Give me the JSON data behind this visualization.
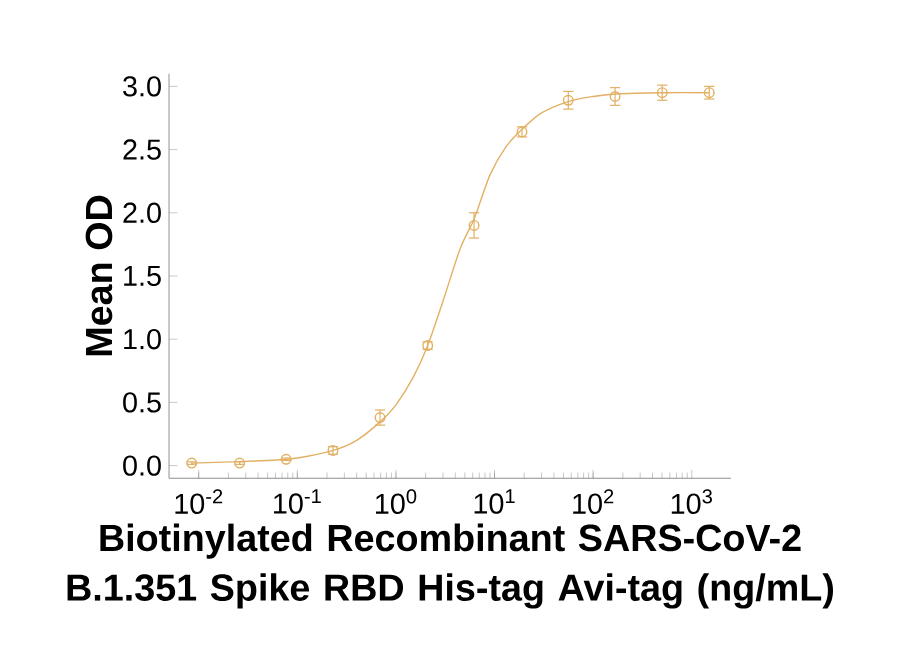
{
  "chart_data": {
    "type": "scatter",
    "xlabel": "Biotinylated Recombinant SARS-CoV-2 B.1.351 Spike RBD His-tag Avi-tag (ng/mL)",
    "ylabel": "Mean OD",
    "log": "x",
    "marker": "circle",
    "xlim": [
      0.005,
      2500
    ],
    "ylim": [
      -0.1,
      3.1
    ],
    "xticks": [
      {
        "value": 0.01,
        "label": "10$^{-2}$"
      },
      {
        "value": 0.1,
        "label": "10$^{-1}$"
      },
      {
        "value": 1,
        "label": "10$^{0}$"
      },
      {
        "value": 10,
        "label": "10$^{1}$"
      },
      {
        "value": 100,
        "label": "10$^{2}$"
      },
      {
        "value": 1000,
        "label": "10$^{3}$"
      }
    ],
    "yticks": [
      {
        "value": 0,
        "label": "0.0"
      },
      0.5,
      {
        "value": 1,
        "label": "1.0"
      },
      1.5,
      {
        "value": 2,
        "label": "2.0"
      },
      2.5,
      {
        "value": 3,
        "label": "3.0"
      }
    ],
    "series": [
      {
        "color": "#e2b063",
        "x": [
          0.0085,
          0.026,
          0.077,
          0.23,
          0.69,
          2.1,
          6.2,
          19,
          56,
          167,
          502,
          1506
        ],
        "values": [
          0.02,
          0.02,
          0.05,
          0.12,
          0.38,
          0.95,
          1.9,
          2.64,
          2.89,
          2.92,
          2.95,
          2.95
        ],
        "errors": [
          0.01,
          0.01,
          0.01,
          0.03,
          0.06,
          0.03,
          0.1,
          0.04,
          0.07,
          0.07,
          0.06,
          0.05
        ]
      },
      {
        "type": "line",
        "marker": "none",
        "color": "#e2b063",
        "x": [
          0.0085,
          0.05,
          0.1,
          0.23,
          0.4,
          0.7,
          1,
          1.5,
          2.1,
          3,
          4.5,
          6.2,
          9,
          13,
          19,
          30,
          56,
          100,
          167,
          500,
          1506
        ],
        "values": [
          0.02,
          0.04,
          0.06,
          0.12,
          0.2,
          0.35,
          0.48,
          0.7,
          0.95,
          1.3,
          1.72,
          1.95,
          2.3,
          2.52,
          2.66,
          2.79,
          2.88,
          2.92,
          2.94,
          2.95,
          2.95
        ]
      }
    ]
  }
}
